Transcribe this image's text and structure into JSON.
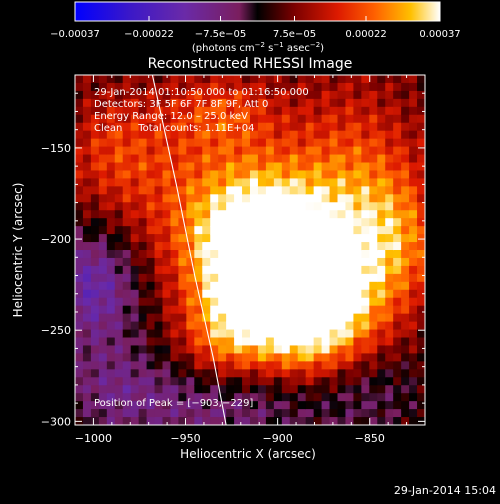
{
  "chart_data": {
    "type": "heatmap",
    "title": "Reconstructed RHESSI Image",
    "xlabel": "Heliocentric X (arcsec)",
    "ylabel": "Heliocentric Y (arcsec)",
    "xlim": [
      -1010,
      -820
    ],
    "ylim": [
      -302,
      -110
    ],
    "x_ticks": [
      -1000,
      -950,
      -900,
      -850
    ],
    "y_ticks": [
      -300,
      -250,
      -200,
      -150
    ],
    "x_tick_labels": [
      "−1000",
      "−950",
      "−900",
      "−850"
    ],
    "y_tick_labels": [
      "−300",
      "−250",
      "−200",
      "−150"
    ],
    "colorbar": {
      "range": [
        -0.00037,
        0.00037
      ],
      "tick_values": [
        -0.00037,
        -0.00022,
        -7.5e-05,
        7.5e-05,
        0.00022,
        0.00037
      ],
      "tick_labels": [
        "−0.00037",
        "−0.00022",
        "−7.5e−05",
        "7.5e−05",
        "0.00022",
        "0.00037"
      ],
      "unit_text": "(photons cm",
      "unit_exp1": "−2",
      "unit_mid": " s",
      "unit_exp2": "−1",
      "unit_tail": " asec",
      "unit_exp3": "−2",
      "unit_close": ")"
    },
    "annotations": [
      "29‑Jan‑2014 01:10:50.000 to 01:16:50.000",
      "Detectors: 3F 5F 6F 7F 8F 9F, Att 0",
      "Energy Range: 12.0 – 25.0 keV",
      "Clean     Total counts: 1.11E+04"
    ],
    "peak_label": "Position of Peak = [−903,−229]",
    "peak": [
      -903,
      -229
    ],
    "limb_curve": [
      [
        -968,
        -110
      ],
      [
        -955,
        -170
      ],
      [
        -945,
        -220
      ],
      [
        -935,
        -265
      ],
      [
        -928,
        -302
      ]
    ],
    "emission_blobs": [
      {
        "x": -893,
        "y": -222,
        "sx": 30,
        "sy": 28,
        "amp": 1.0
      },
      {
        "x": -912,
        "y": -200,
        "sx": 25,
        "sy": 30,
        "amp": 0.75
      },
      {
        "x": -878,
        "y": -250,
        "sx": 24,
        "sy": 22,
        "amp": 0.55
      },
      {
        "x": -930,
        "y": -255,
        "sx": 16,
        "sy": 18,
        "amp": 0.35
      },
      {
        "x": -860,
        "y": -170,
        "sx": 26,
        "sy": 38,
        "amp": 0.45
      },
      {
        "x": -835,
        "y": -200,
        "sx": 18,
        "sy": 26,
        "amp": 0.4
      },
      {
        "x": -955,
        "y": -170,
        "sx": 35,
        "sy": 35,
        "amp": 0.3
      },
      {
        "x": -990,
        "y": -150,
        "sx": 18,
        "sy": 20,
        "amp": 0.25
      },
      {
        "x": -930,
        "y": -130,
        "sx": 20,
        "sy": 14,
        "amp": 0.3
      },
      {
        "x": -1000,
        "y": -225,
        "sx": 18,
        "sy": 22,
        "amp": -0.55
      },
      {
        "x": -930,
        "y": -290,
        "sx": 40,
        "sy": 16,
        "amp": -0.35
      },
      {
        "x": -990,
        "y": -280,
        "sx": 20,
        "sy": 20,
        "amp": -0.25
      },
      {
        "x": -855,
        "y": -280,
        "sx": 24,
        "sy": 20,
        "amp": -0.25
      }
    ]
  },
  "footer": {
    "timestamp": "29‑Jan‑2014 15:04"
  }
}
